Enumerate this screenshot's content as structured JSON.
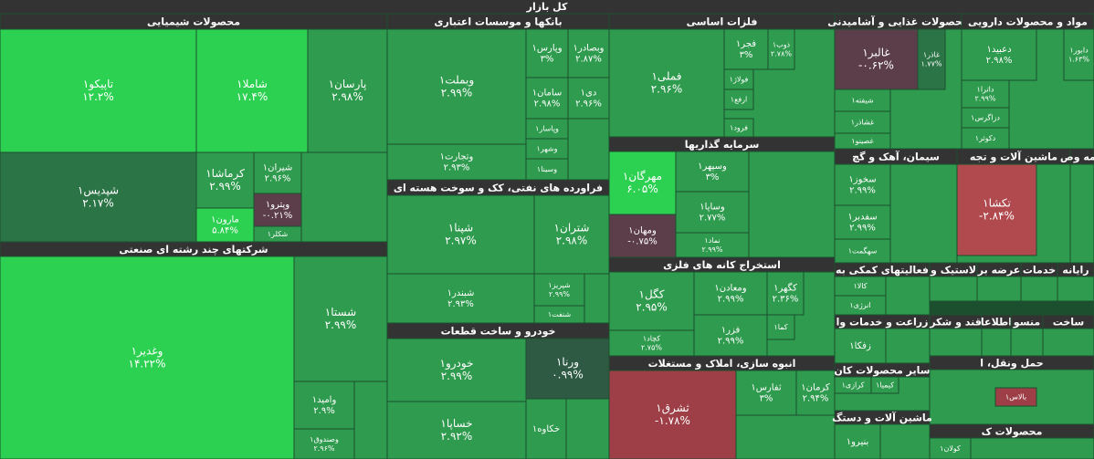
{
  "title": "کل بازار",
  "sectors": [
    {
      "name": "محصولات شیمیایی",
      "tiles": [
        {
          "name": "تاپیکو۱",
          "change": "۱۲.۲%",
          "color": "#2dd152"
        },
        {
          "name": "شاملا۱",
          "change": "۱۷.۴%",
          "color": "#2dd152"
        },
        {
          "name": "پارسان۱",
          "change": "۲.۹۸%",
          "color": "#2e9b4e"
        },
        {
          "name": "شپدیس۱",
          "change": "۲.۱۷%",
          "color": "#2b7446"
        },
        {
          "name": "کرماشا۱",
          "change": "۲.۹۹%",
          "color": "#2e9b4e"
        },
        {
          "name": "مارون۱",
          "change": "۵.۸۴%",
          "color": "#2dd152"
        },
        {
          "name": "شیران۱",
          "change": "۲.۹۶%",
          "color": "#2e9b4e"
        },
        {
          "name": "وپترو۱",
          "change": "-۰.۲۱%",
          "color": "#5c3d4a"
        },
        {
          "name": "شکلر۱",
          "color": "#2e9b4e"
        }
      ]
    },
    {
      "name": "شرکتهای چند رشته ای صنعتی",
      "tiles": [
        {
          "name": "وغدیر۱",
          "change": "۱۴.۲۲%",
          "color": "#2dd152"
        },
        {
          "name": "شستا۱",
          "change": "۲.۹۹%",
          "color": "#2e9b4e"
        },
        {
          "name": "وامید۱",
          "change": "۲.۹%",
          "color": "#2e9b4e"
        },
        {
          "name": "وصندوق۱",
          "change": "۲.۹۶%",
          "color": "#2e9b4e"
        }
      ]
    },
    {
      "name": "بانکها و موسسات اعتباری",
      "tiles": [
        {
          "name": "وبملت۱",
          "change": "۲.۹۹%",
          "color": "#2e9b4e"
        },
        {
          "name": "وتجارت۱",
          "change": "۲.۹۳%",
          "color": "#2e9b4e"
        },
        {
          "name": "وپارس۱",
          "change": "۳%",
          "color": "#2e9b4e"
        },
        {
          "name": "وبصادر۱",
          "change": "۲.۸۷%",
          "color": "#2e9b4e"
        },
        {
          "name": "سامان۱",
          "change": "۲.۹۸%",
          "color": "#2e9b4e"
        },
        {
          "name": "دی۱",
          "change": "۲.۹۶%",
          "color": "#2e9b4e"
        },
        {
          "name": "وپاسار۱",
          "color": "#2e9b4e"
        },
        {
          "name": "وشهر۱",
          "color": "#2e9b4e"
        },
        {
          "name": "وسینا۱",
          "color": "#2e9b4e"
        }
      ]
    },
    {
      "name": "فراورده های نفتی، کک و سوخت هسته ای",
      "tiles": [
        {
          "name": "شپنا۱",
          "change": "۲.۹۷%",
          "color": "#2e9b4e"
        },
        {
          "name": "شبندر۱",
          "change": "۲.۹۳%",
          "color": "#2e9b4e"
        },
        {
          "name": "شتران۱",
          "change": "۲.۹۸%",
          "color": "#2e9b4e"
        },
        {
          "name": "شپریز۱",
          "change": "۲.۹۹%",
          "color": "#2e9b4e"
        },
        {
          "name": "شنفت۱",
          "color": "#2e9b4e"
        }
      ]
    },
    {
      "name": "خودرو و ساخت قطعات",
      "tiles": [
        {
          "name": "خودرو۱",
          "change": "۲.۹۹%",
          "color": "#2e9b4e"
        },
        {
          "name": "خساپا۱",
          "change": "۲.۹۲%",
          "color": "#2e9b4e"
        },
        {
          "name": "ورنا۱",
          "change": "۰.۹۹%",
          "color": "#2e5a44"
        },
        {
          "name": "خکاوه۱",
          "color": "#2e9b4e"
        }
      ]
    },
    {
      "name": "فلزات اساسی",
      "tiles": [
        {
          "name": "فملی۱",
          "change": "۲.۹۶%",
          "color": "#2e9b4e"
        },
        {
          "name": "فجر۱",
          "change": "۳%",
          "color": "#2e9b4e"
        },
        {
          "name": "ذوب۱",
          "change": "۲.۷۸%",
          "color": "#2e9b4e"
        },
        {
          "name": "فولاژ۱",
          "color": "#2e9b4e"
        },
        {
          "name": "ارفع۱",
          "color": "#2e9b4e"
        },
        {
          "name": "فرود۱",
          "color": "#2e9b4e"
        }
      ]
    },
    {
      "name": "سرمایه گذاریها",
      "tiles": [
        {
          "name": "مهرگان۱",
          "change": "۶.۰۵%",
          "color": "#2dd152"
        },
        {
          "name": "ومهان۱",
          "change": "-۰.۷۵%",
          "color": "#5c3d4a"
        },
        {
          "name": "وسپهر۱",
          "change": "۳%",
          "color": "#2e9b4e"
        },
        {
          "name": "وساپا۱",
          "change": "۲.۷۷%",
          "color": "#2e9b4e"
        },
        {
          "name": "نماد۱",
          "change": "۲.۹۹%",
          "color": "#2e9b4e"
        }
      ]
    },
    {
      "name": "استخراج کانه های فلزی",
      "tiles": [
        {
          "name": "کگل۱",
          "change": "۲.۹۵%",
          "color": "#2e9b4e"
        },
        {
          "name": "کچاد۱",
          "change": "۲.۷۵%",
          "color": "#2e9b4e"
        },
        {
          "name": "ومعادن۱",
          "change": "۲.۹۹%",
          "color": "#2e9b4e"
        },
        {
          "name": "فزر۱",
          "change": "۲.۹۹%",
          "color": "#2e9b4e"
        },
        {
          "name": "کگهر۱",
          "change": "۲.۳۶%",
          "color": "#2e9b4e"
        },
        {
          "name": "کما۱",
          "color": "#2e9b4e"
        }
      ]
    },
    {
      "name": "انبوه سازی، املاک و مستغلات",
      "tiles": [
        {
          "name": "ثشرق۱",
          "change": "-۱.۷۸%",
          "color": "#9e3f47"
        },
        {
          "name": "ثفارس۱",
          "change": "۳%",
          "color": "#2e9b4e"
        },
        {
          "name": "کرمان۱",
          "change": "۲.۹۴%",
          "color": "#2e9b4e"
        }
      ]
    },
    {
      "name": "محصولات غذایی و آشامیدنی",
      "tiles": [
        {
          "name": "غالبر۱",
          "change": "-۰.۶۲%",
          "color": "#5c3d4a"
        },
        {
          "name": "غاذر۱",
          "change": "۱.۷۷%",
          "color": "#2b7446"
        },
        {
          "name": "شیفته۱",
          "color": "#2e9b4e"
        },
        {
          "name": "غشاذر۱",
          "color": "#2e9b4e"
        },
        {
          "name": "غصینو۱",
          "color": "#2e9b4e"
        }
      ]
    },
    {
      "name": "مواد و محصولات دارویی",
      "tiles": [
        {
          "name": "دعبید۱",
          "change": "۲.۹۸%",
          "color": "#2e9b4e"
        },
        {
          "name": "دابور۱",
          "change": "۱.۶۳%",
          "color": "#2e9b4e"
        },
        {
          "name": "داترا۱",
          "change": "۲.۹۹%",
          "color": "#2e9b4e"
        },
        {
          "name": "دزاگرس۱",
          "color": "#2e9b4e"
        },
        {
          "name": "دکوثر۱",
          "color": "#2e9b4e"
        }
      ]
    },
    {
      "name": "سیمان، آهک و گچ",
      "tiles": [
        {
          "name": "سخوز۱",
          "change": "۲.۹۹%",
          "color": "#2e9b4e"
        },
        {
          "name": "سفدبر۱",
          "change": "۲.۹۹%",
          "color": "#2e9b4e"
        },
        {
          "name": "سهگمت۱",
          "color": "#2e9b4e"
        }
      ]
    },
    {
      "name": "ماشین آلات و تجه",
      "tiles": [
        {
          "name": "تکشا۱",
          "change": "-۲.۸۴%",
          "color": "#b04a4f"
        }
      ]
    },
    {
      "name": "بیمه وص",
      "tiles": []
    },
    {
      "name": "فعالیتهای کمکی به",
      "tiles": [
        {
          "name": "کالا۱",
          "color": "#2e9b4e"
        },
        {
          "name": "انرژی۱",
          "color": "#2e9b4e"
        }
      ]
    },
    {
      "name": "لاستیک و",
      "tiles": []
    },
    {
      "name": "عرضه بر",
      "tiles": []
    },
    {
      "name": "خدمات",
      "tiles": []
    },
    {
      "name": "رایانه",
      "tiles": []
    },
    {
      "name": "زراعت و خدمات وا",
      "tiles": [
        {
          "name": "زفکا۱",
          "color": "#2e9b4e"
        }
      ]
    },
    {
      "name": "قند و شکر",
      "tiles": []
    },
    {
      "name": "اطلاعا",
      "tiles": []
    },
    {
      "name": "منسو",
      "tiles": []
    },
    {
      "name": "ساخت",
      "tiles": []
    },
    {
      "name": "سایر محصولات کان",
      "tiles": [
        {
          "name": "کرازی۱",
          "color": "#2e9b4e"
        },
        {
          "name": "کیمیا۱",
          "color": "#2e9b4e"
        }
      ]
    },
    {
      "name": "حمل ونقل، ا",
      "tiles": [
        {
          "name": "بالاس۱",
          "color": "#9e3f47"
        }
      ]
    },
    {
      "name": "ماشین آلات و دستگ",
      "tiles": [
        {
          "name": "بنیرو۱",
          "color": "#2e9b4e"
        }
      ]
    },
    {
      "name": "محصولات ک",
      "tiles": [
        {
          "name": "کولان۱",
          "color": "#2e9b4e"
        }
      ]
    }
  ]
}
